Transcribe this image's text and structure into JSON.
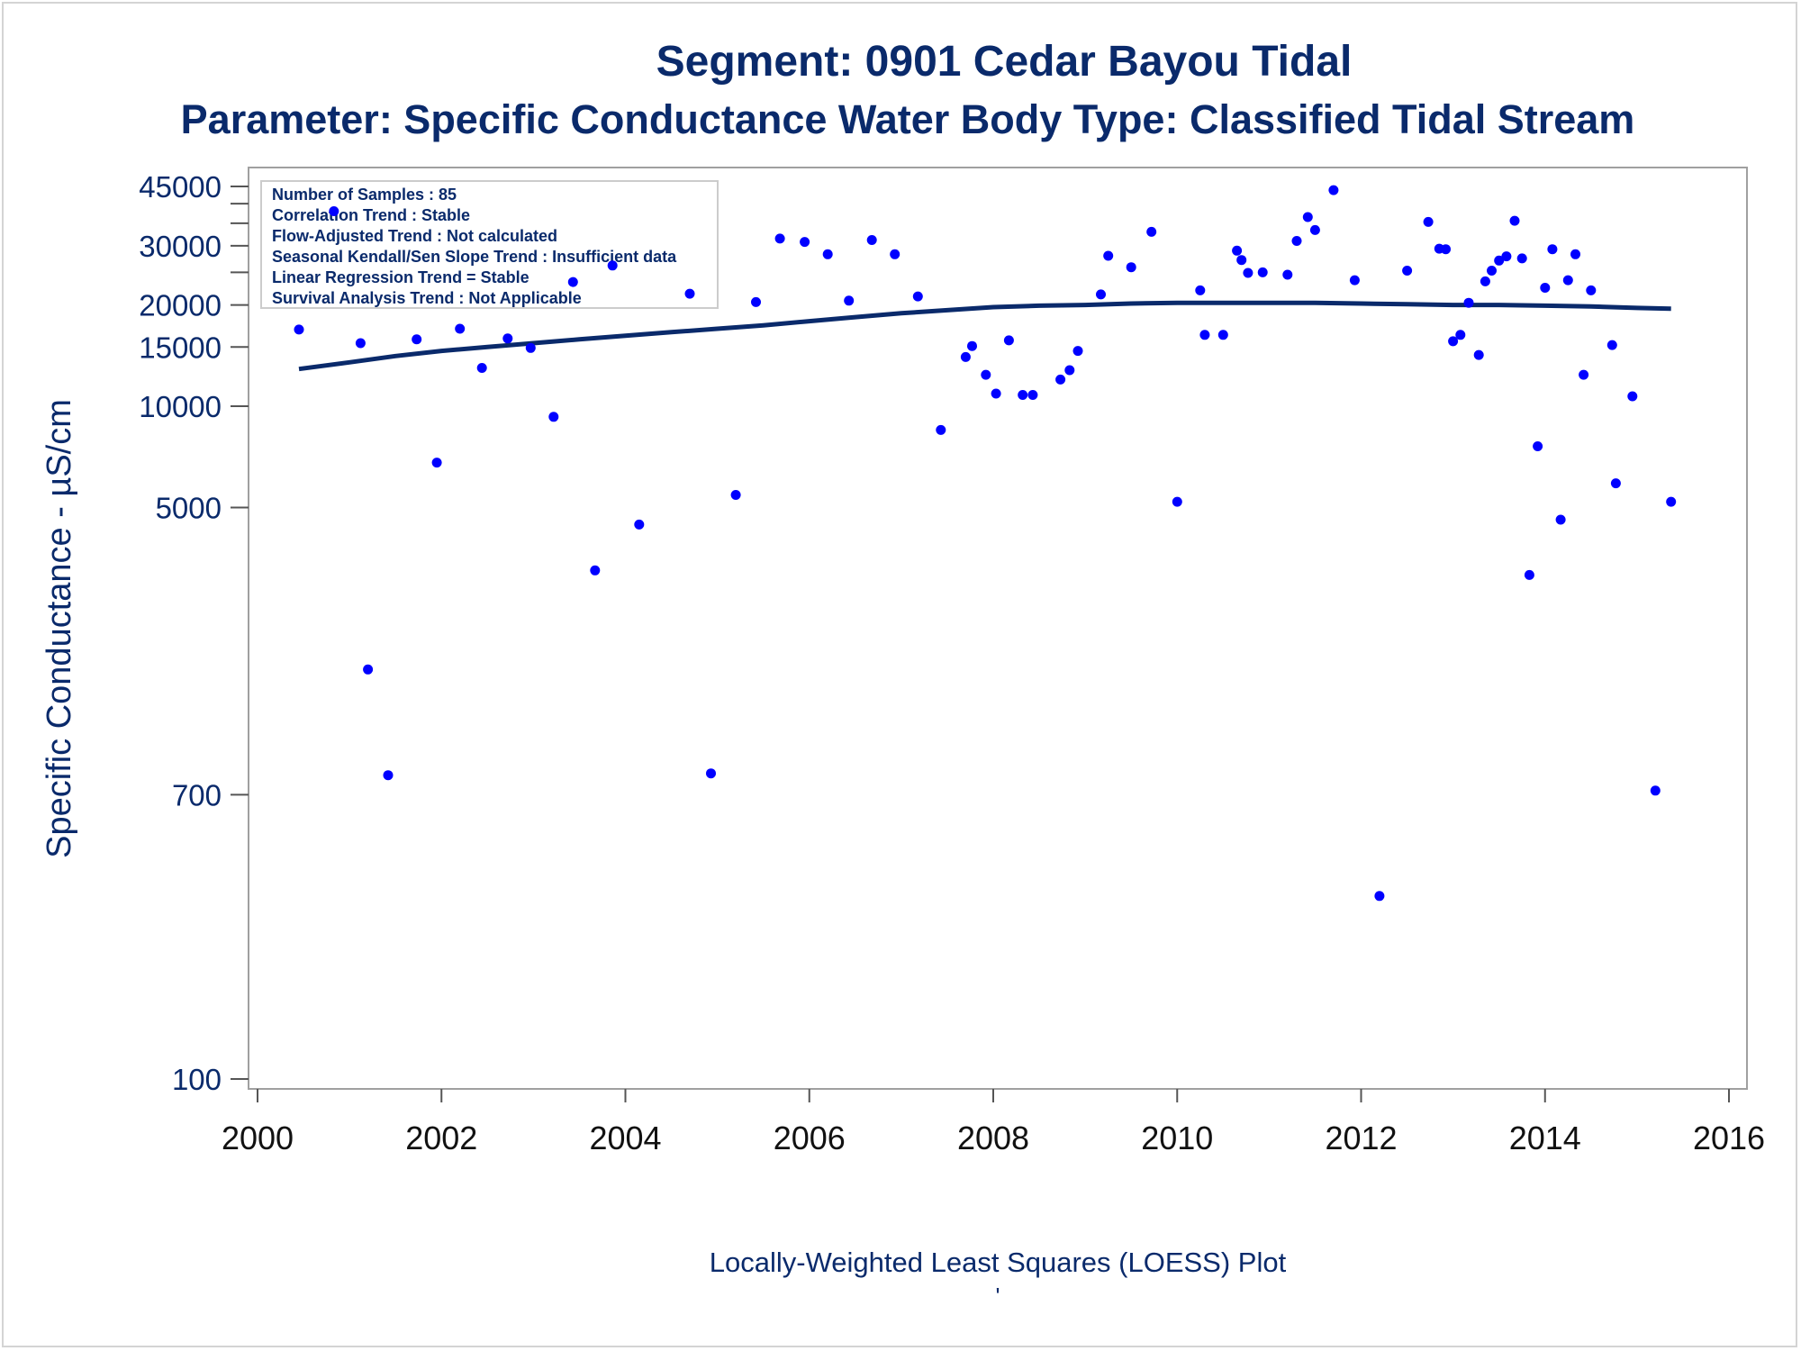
{
  "chart_data": {
    "type": "scatter",
    "title": "Segment: 0901  Cedar Bayou Tidal",
    "subtitle": "Parameter: Specific Conductance   Water Body Type: Classified Tidal Stream",
    "xlabel": "Locally-Weighted Least Squares (LOESS) Plot",
    "ylabel": "Specific Conductance -  µS/cm",
    "footnote": "'",
    "y_scale": "log",
    "ylim": [
      100,
      47000
    ],
    "xlim": [
      2000,
      2016
    ],
    "x_ticks": [
      "2000",
      "2002",
      "2004",
      "2006",
      "2008",
      "2010",
      "2012",
      "2014",
      "2016"
    ],
    "y_ticks": [
      "45000",
      "30000",
      "20000",
      "15000",
      "10000",
      "5000",
      "700",
      "100"
    ],
    "y_minor_ticks": [
      40000,
      35000,
      25000
    ],
    "grid": false,
    "point_color": "#0000ff",
    "line_color": "#0a2a6b",
    "inset": {
      "placement": "top-left",
      "lines": [
        "Number of Samples : 85",
        "Correlation Trend : Stable",
        "Flow-Adjusted Trend : Not calculated",
        "Seasonal Kendall/Sen Slope Trend : Insufficient data",
        "Linear Regression Trend = Stable",
        "Survival Analysis Trend : Not Applicable"
      ]
    },
    "series": [
      {
        "type": "scatter",
        "points": [
          [
            2000.45,
            16900
          ],
          [
            2000.83,
            38000
          ],
          [
            2001.12,
            15400
          ],
          [
            2001.2,
            1650
          ],
          [
            2001.42,
            800
          ],
          [
            2001.95,
            6800
          ],
          [
            2001.73,
            15800
          ],
          [
            2002.2,
            17000
          ],
          [
            2002.44,
            13000
          ],
          [
            2002.72,
            15900
          ],
          [
            2002.97,
            14900
          ],
          [
            2003.22,
            9300
          ],
          [
            2003.43,
            23400
          ],
          [
            2003.67,
            3250
          ],
          [
            2003.86,
            26200
          ],
          [
            2004.15,
            4450
          ],
          [
            2004.7,
            21600
          ],
          [
            2004.93,
            810
          ],
          [
            2005.2,
            5450
          ],
          [
            2005.42,
            20400
          ],
          [
            2005.68,
            31500
          ],
          [
            2005.95,
            30800
          ],
          [
            2006.2,
            28300
          ],
          [
            2006.43,
            20600
          ],
          [
            2006.68,
            31200
          ],
          [
            2006.93,
            28300
          ],
          [
            2007.18,
            21200
          ],
          [
            2007.43,
            8500
          ],
          [
            2007.7,
            14000
          ],
          [
            2007.77,
            15100
          ],
          [
            2007.92,
            12400
          ],
          [
            2008.03,
            10900
          ],
          [
            2008.17,
            15700
          ],
          [
            2008.32,
            10800
          ],
          [
            2008.43,
            10800
          ],
          [
            2008.73,
            12000
          ],
          [
            2008.83,
            12800
          ],
          [
            2008.92,
            14600
          ],
          [
            2009.17,
            21500
          ],
          [
            2009.25,
            28000
          ],
          [
            2009.5,
            25900
          ],
          [
            2009.72,
            33000
          ],
          [
            2010.0,
            5200
          ],
          [
            2010.25,
            22100
          ],
          [
            2010.3,
            16300
          ],
          [
            2010.5,
            16300
          ],
          [
            2010.65,
            29000
          ],
          [
            2010.7,
            27200
          ],
          [
            2010.77,
            24900
          ],
          [
            2010.93,
            25000
          ],
          [
            2011.2,
            24600
          ],
          [
            2011.3,
            31000
          ],
          [
            2011.42,
            36500
          ],
          [
            2011.5,
            33400
          ],
          [
            2011.7,
            43900
          ],
          [
            2011.93,
            23700
          ],
          [
            2012.2,
            350
          ],
          [
            2012.5,
            25300
          ],
          [
            2012.73,
            35300
          ],
          [
            2012.85,
            29400
          ],
          [
            2012.92,
            29300
          ],
          [
            2013.0,
            15600
          ],
          [
            2013.08,
            16300
          ],
          [
            2013.17,
            20300
          ],
          [
            2013.28,
            14200
          ],
          [
            2013.35,
            23500
          ],
          [
            2013.42,
            25300
          ],
          [
            2013.5,
            27100
          ],
          [
            2013.58,
            27900
          ],
          [
            2013.67,
            35600
          ],
          [
            2013.75,
            27500
          ],
          [
            2013.83,
            3150
          ],
          [
            2013.92,
            7600
          ],
          [
            2014.0,
            22500
          ],
          [
            2014.08,
            29300
          ],
          [
            2014.17,
            4600
          ],
          [
            2014.25,
            23700
          ],
          [
            2014.33,
            28300
          ],
          [
            2014.42,
            12400
          ],
          [
            2014.5,
            22100
          ],
          [
            2014.73,
            15200
          ],
          [
            2014.77,
            5900
          ],
          [
            2014.95,
            10700
          ],
          [
            2015.2,
            720
          ],
          [
            2015.37,
            5200
          ]
        ]
      },
      {
        "type": "line",
        "points": [
          [
            2000.45,
            12900
          ],
          [
            2001.0,
            13500
          ],
          [
            2001.5,
            14100
          ],
          [
            2002.0,
            14600
          ],
          [
            2002.5,
            15000
          ],
          [
            2003.0,
            15400
          ],
          [
            2003.5,
            15800
          ],
          [
            2004.0,
            16200
          ],
          [
            2004.5,
            16600
          ],
          [
            2005.0,
            17000
          ],
          [
            2005.5,
            17400
          ],
          [
            2006.0,
            17900
          ],
          [
            2006.5,
            18400
          ],
          [
            2007.0,
            18900
          ],
          [
            2007.5,
            19300
          ],
          [
            2008.0,
            19700
          ],
          [
            2008.5,
            19900
          ],
          [
            2009.0,
            20000
          ],
          [
            2009.5,
            20200
          ],
          [
            2010.0,
            20300
          ],
          [
            2010.5,
            20300
          ],
          [
            2011.0,
            20300
          ],
          [
            2011.5,
            20300
          ],
          [
            2012.0,
            20200
          ],
          [
            2012.5,
            20100
          ],
          [
            2013.0,
            20000
          ],
          [
            2013.5,
            20000
          ],
          [
            2014.0,
            19900
          ],
          [
            2014.5,
            19800
          ],
          [
            2015.0,
            19600
          ],
          [
            2015.37,
            19500
          ]
        ]
      }
    ]
  }
}
